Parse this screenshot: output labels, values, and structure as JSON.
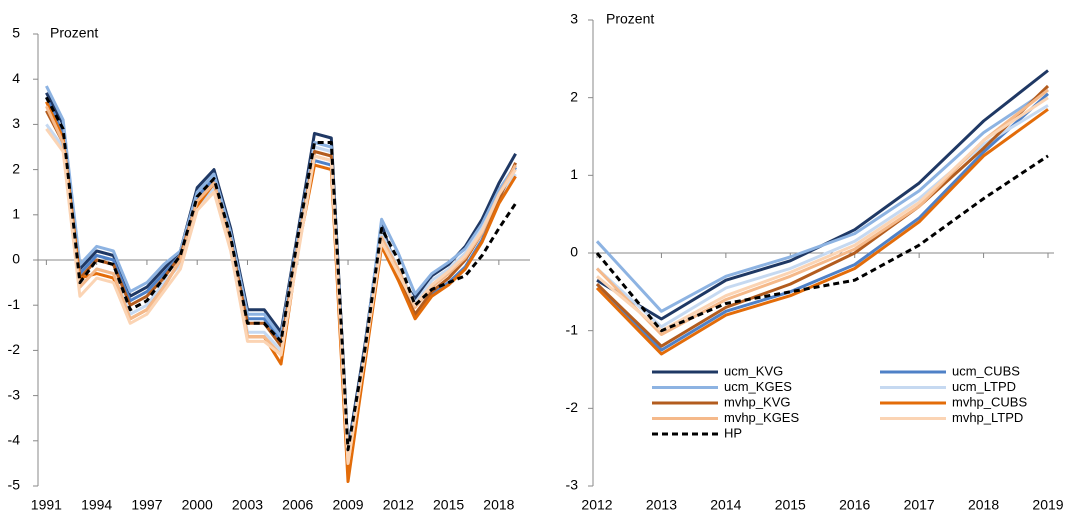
{
  "chart_data": [
    {
      "type": "line",
      "y_label": "Prozent",
      "x": [
        1991,
        1992,
        1993,
        1994,
        1995,
        1996,
        1997,
        1998,
        1999,
        2000,
        2001,
        2002,
        2003,
        2004,
        2005,
        2006,
        2007,
        2008,
        2009,
        2010,
        2011,
        2012,
        2013,
        2014,
        2015,
        2016,
        2017,
        2018,
        2019
      ],
      "xlim": [
        1990.5,
        2019.5
      ],
      "xticks": [
        1991,
        1994,
        1997,
        2000,
        2003,
        2006,
        2009,
        2012,
        2015,
        2018
      ],
      "ylim": [
        -5,
        5
      ],
      "yticks": [
        -5,
        -4,
        -3,
        -2,
        -1,
        0,
        1,
        2,
        3,
        4,
        5
      ],
      "series": [
        {
          "color": "#1f3864",
          "linestyle": "solid",
          "values": [
            3.7,
            3.0,
            -0.2,
            0.2,
            0.1,
            -0.8,
            -0.6,
            -0.2,
            0.2,
            1.6,
            2.0,
            0.7,
            -1.1,
            -1.1,
            -1.6,
            0.6,
            2.8,
            2.7,
            -4.2,
            -1.9,
            0.8,
            -0.35,
            -0.85,
            -0.35,
            -0.1,
            0.3,
            0.9,
            1.7,
            2.35
          ]
        },
        {
          "color": "#4f81c7",
          "linestyle": "solid",
          "values": [
            3.6,
            2.8,
            -0.3,
            0.1,
            0.0,
            -0.9,
            -0.7,
            -0.3,
            0.1,
            1.4,
            1.8,
            0.5,
            -1.3,
            -1.3,
            -1.8,
            0.4,
            2.2,
            2.1,
            -4.6,
            -2.2,
            0.6,
            -0.4,
            -1.25,
            -0.75,
            -0.5,
            -0.15,
            0.45,
            1.3,
            2.05
          ]
        },
        {
          "color": "#8db3e2",
          "linestyle": "solid",
          "values": [
            3.85,
            3.1,
            -0.1,
            0.3,
            0.2,
            -0.7,
            -0.5,
            -0.1,
            0.2,
            1.5,
            1.9,
            0.6,
            -1.2,
            -1.2,
            -1.7,
            0.5,
            2.6,
            2.5,
            -4.3,
            -2.0,
            0.9,
            0.15,
            -0.75,
            -0.3,
            -0.05,
            0.25,
            0.8,
            1.55,
            2.1
          ]
        },
        {
          "color": "#c6d9f1",
          "linestyle": "solid",
          "values": [
            3.0,
            2.5,
            -0.6,
            -0.2,
            -0.3,
            -1.2,
            -1.0,
            -0.5,
            -0.1,
            1.2,
            1.6,
            0.3,
            -1.6,
            -1.6,
            -2.0,
            0.2,
            2.5,
            2.4,
            -4.4,
            -2.1,
            0.6,
            -0.2,
            -0.95,
            -0.45,
            -0.2,
            0.15,
            0.7,
            1.4,
            1.9
          ]
        },
        {
          "color": "#b35c1e",
          "linestyle": "solid",
          "values": [
            3.3,
            2.6,
            -0.4,
            0.0,
            -0.1,
            -1.0,
            -0.8,
            -0.4,
            0.1,
            1.3,
            1.7,
            0.4,
            -1.4,
            -1.4,
            -1.9,
            0.3,
            2.4,
            2.3,
            -4.7,
            -2.2,
            0.4,
            -0.4,
            -1.2,
            -0.7,
            -0.4,
            0.0,
            0.6,
            1.35,
            2.15
          ]
        },
        {
          "color": "#e36c09",
          "linestyle": "solid",
          "values": [
            3.5,
            2.7,
            -0.4,
            -0.3,
            -0.4,
            -1.3,
            -1.1,
            -0.6,
            0.0,
            1.2,
            1.7,
            0.3,
            -1.7,
            -1.7,
            -2.3,
            0.2,
            2.1,
            2.0,
            -4.9,
            -2.3,
            0.3,
            -0.45,
            -1.3,
            -0.8,
            -0.55,
            -0.2,
            0.4,
            1.25,
            1.85
          ]
        },
        {
          "color": "#f5b98a",
          "linestyle": "solid",
          "values": [
            3.4,
            2.6,
            -0.6,
            -0.2,
            -0.3,
            -1.3,
            -1.1,
            -0.6,
            0.0,
            1.3,
            1.7,
            0.4,
            -1.7,
            -1.7,
            -2.1,
            0.3,
            2.3,
            2.2,
            -4.5,
            -2.1,
            0.5,
            -0.2,
            -1.05,
            -0.6,
            -0.3,
            0.05,
            0.6,
            1.45,
            2.1
          ]
        },
        {
          "color": "#fbd4b4",
          "linestyle": "solid",
          "values": [
            2.9,
            2.4,
            -0.8,
            -0.4,
            -0.5,
            -1.4,
            -1.2,
            -0.7,
            -0.2,
            1.1,
            1.5,
            0.2,
            -1.8,
            -1.8,
            -2.1,
            0.1,
            2.3,
            2.2,
            -4.5,
            -2.1,
            0.4,
            -0.3,
            -1.0,
            -0.55,
            -0.25,
            0.1,
            0.65,
            1.45,
            2.0
          ]
        },
        {
          "color": "#000000",
          "linestyle": "dashed",
          "values": [
            3.6,
            2.9,
            -0.5,
            0.0,
            -0.1,
            -1.1,
            -0.9,
            -0.4,
            0.1,
            1.4,
            1.8,
            0.5,
            -1.4,
            -1.4,
            -1.8,
            0.5,
            2.6,
            2.6,
            -4.2,
            -2.0,
            0.7,
            0.0,
            -1.0,
            -0.65,
            -0.5,
            -0.35,
            0.1,
            0.7,
            1.25
          ]
        }
      ]
    },
    {
      "type": "line",
      "y_label": "Prozent",
      "x": [
        2012,
        2013,
        2014,
        2015,
        2016,
        2017,
        2018,
        2019
      ],
      "xlim": [
        2012,
        2019
      ],
      "xticks": [
        2012,
        2013,
        2014,
        2015,
        2016,
        2017,
        2018,
        2019
      ],
      "ylim": [
        -3,
        3
      ],
      "yticks": [
        -3,
        -2,
        -1,
        0,
        1,
        2,
        3
      ],
      "legend": "lower left",
      "series": [
        {
          "name": "ucm_KVG",
          "color": "#1f3864",
          "linestyle": "solid",
          "values": [
            -0.35,
            -0.85,
            -0.35,
            -0.1,
            0.3,
            0.9,
            1.7,
            2.35
          ]
        },
        {
          "name": "ucm_CUBS",
          "color": "#4f81c7",
          "linestyle": "solid",
          "values": [
            -0.4,
            -1.25,
            -0.75,
            -0.5,
            -0.15,
            0.45,
            1.3,
            2.05
          ]
        },
        {
          "name": "ucm_KGES",
          "color": "#8db3e2",
          "linestyle": "solid",
          "values": [
            0.15,
            -0.75,
            -0.3,
            -0.05,
            0.25,
            0.8,
            1.55,
            2.1
          ]
        },
        {
          "name": "ucm_LTPD",
          "color": "#c6d9f1",
          "linestyle": "solid",
          "values": [
            -0.2,
            -0.95,
            -0.45,
            -0.2,
            0.15,
            0.7,
            1.4,
            1.9
          ]
        },
        {
          "name": "mvhp_KVG",
          "color": "#b35c1e",
          "linestyle": "solid",
          "values": [
            -0.4,
            -1.2,
            -0.7,
            -0.4,
            0.0,
            0.6,
            1.35,
            2.15
          ]
        },
        {
          "name": "mvhp_CUBS",
          "color": "#e36c09",
          "linestyle": "solid",
          "values": [
            -0.45,
            -1.3,
            -0.8,
            -0.55,
            -0.2,
            0.4,
            1.25,
            1.85
          ]
        },
        {
          "name": "mvhp_KGES",
          "color": "#f5b98a",
          "linestyle": "solid",
          "values": [
            -0.2,
            -1.05,
            -0.6,
            -0.3,
            0.05,
            0.6,
            1.45,
            2.1
          ]
        },
        {
          "name": "mvhp_LTPD",
          "color": "#fbd4b4",
          "linestyle": "solid",
          "values": [
            -0.3,
            -1.0,
            -0.55,
            -0.25,
            0.1,
            0.65,
            1.45,
            2.0
          ]
        },
        {
          "name": "HP",
          "color": "#000000",
          "linestyle": "dashed",
          "values": [
            0.0,
            -1.0,
            -0.65,
            -0.5,
            -0.35,
            0.1,
            0.7,
            1.25
          ]
        }
      ]
    }
  ]
}
